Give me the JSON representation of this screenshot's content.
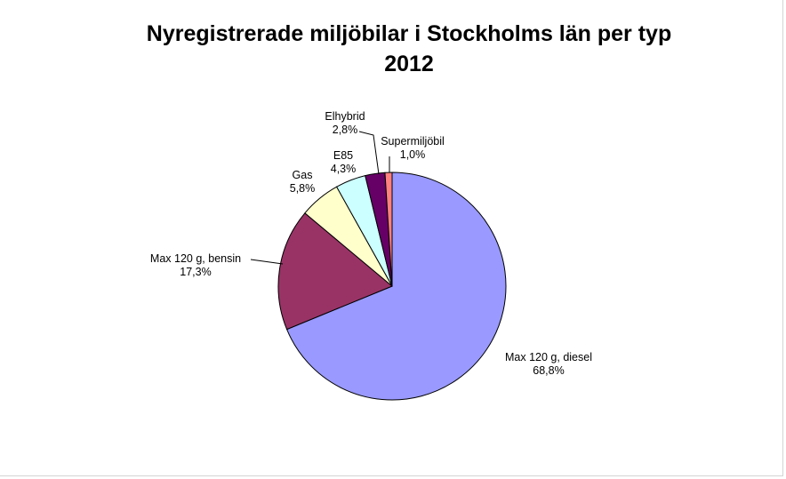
{
  "chart_data": {
    "type": "pie",
    "title": [
      "Nyregistrerade miljöbilar i Stockholms län per typ",
      "2012"
    ],
    "legend": "none",
    "slices": [
      {
        "name": "Max 120 g, diesel",
        "value": 68.8,
        "label": "68,8%",
        "color": "#9999FF"
      },
      {
        "name": "Max 120 g, bensin",
        "value": 17.3,
        "label": "17,3%",
        "color": "#993366"
      },
      {
        "name": "Gas",
        "value": 5.8,
        "label": "5,8%",
        "color": "#FFFFCC"
      },
      {
        "name": "E85",
        "value": 4.3,
        "label": "4,3%",
        "color": "#CCFFFF"
      },
      {
        "name": "Elhybrid",
        "value": 2.8,
        "label": "2,8%",
        "color": "#660066"
      },
      {
        "name": "Supermiljöbil",
        "value": 1.0,
        "label": "1,0%",
        "color": "#FF8080"
      }
    ]
  }
}
